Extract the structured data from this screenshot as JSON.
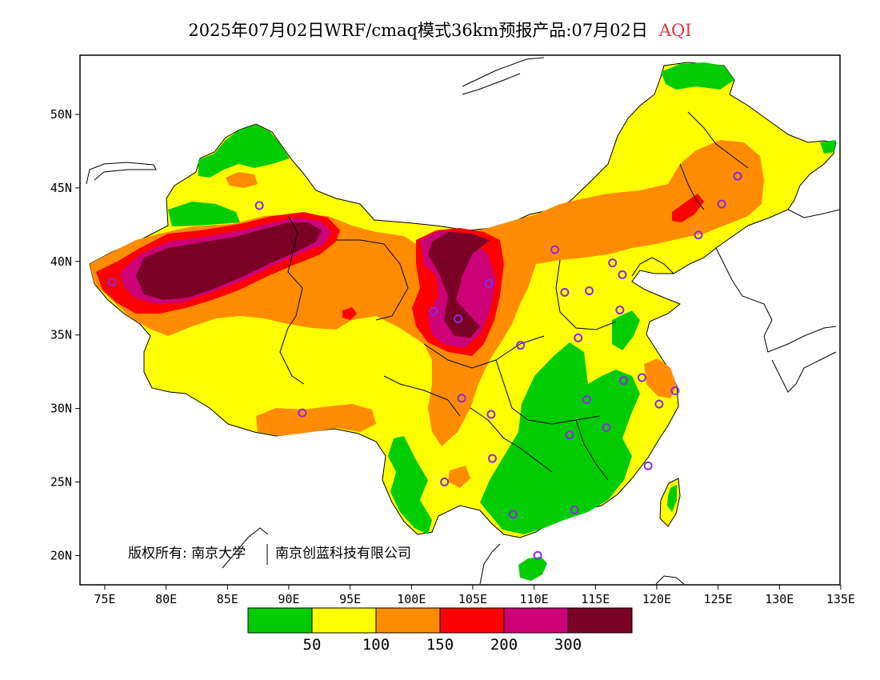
{
  "title": {
    "main": "2025年07月02日WRF/cmaq模式36km预报产品:07月02日",
    "variable": "AQI",
    "variable_color": "#e8323c"
  },
  "axes": {
    "x_ticks": [
      "75E",
      "80E",
      "85E",
      "90E",
      "95E",
      "100E",
      "105E",
      "110E",
      "115E",
      "120E",
      "125E",
      "130E",
      "135E"
    ],
    "y_ticks": [
      "50N",
      "45N",
      "40N",
      "35N",
      "30N",
      "25N",
      "20N"
    ]
  },
  "copyright": {
    "owner1": "版权所有: 南京大学",
    "owner2": "南京创蓝科技有限公司"
  },
  "colorbar": {
    "colors": [
      "#00cc00",
      "#ffff00",
      "#ff8c00",
      "#ff0000",
      "#cc0077",
      "#7a0026"
    ],
    "labels": [
      "50",
      "100",
      "150",
      "200",
      "300"
    ]
  },
  "stations": [
    {
      "lon": 87.6,
      "lat": 43.8
    },
    {
      "lon": 101.8,
      "lat": 36.6
    },
    {
      "lon": 103.8,
      "lat": 36.1
    },
    {
      "lon": 106.3,
      "lat": 38.5
    },
    {
      "lon": 111.7,
      "lat": 40.8
    },
    {
      "lon": 112.5,
      "lat": 37.9
    },
    {
      "lon": 114.5,
      "lat": 38.0
    },
    {
      "lon": 116.4,
      "lat": 39.9
    },
    {
      "lon": 117.2,
      "lat": 39.1
    },
    {
      "lon": 117.0,
      "lat": 36.7
    },
    {
      "lon": 113.6,
      "lat": 34.8
    },
    {
      "lon": 108.9,
      "lat": 34.3
    },
    {
      "lon": 117.3,
      "lat": 31.9
    },
    {
      "lon": 118.8,
      "lat": 32.1
    },
    {
      "lon": 120.2,
      "lat": 30.3
    },
    {
      "lon": 121.5,
      "lat": 31.2
    },
    {
      "lon": 114.3,
      "lat": 30.6
    },
    {
      "lon": 112.9,
      "lat": 28.2
    },
    {
      "lon": 115.9,
      "lat": 28.7
    },
    {
      "lon": 119.3,
      "lat": 26.1
    },
    {
      "lon": 113.3,
      "lat": 23.1
    },
    {
      "lon": 108.3,
      "lat": 22.8
    },
    {
      "lon": 110.3,
      "lat": 20.0
    },
    {
      "lon": 106.6,
      "lat": 26.6
    },
    {
      "lon": 102.7,
      "lat": 25.0
    },
    {
      "lon": 104.1,
      "lat": 30.7
    },
    {
      "lon": 106.5,
      "lat": 29.6
    },
    {
      "lon": 91.1,
      "lat": 29.7
    },
    {
      "lon": 123.4,
      "lat": 41.8
    },
    {
      "lon": 125.3,
      "lat": 43.9
    },
    {
      "lon": 126.6,
      "lat": 45.8
    },
    {
      "lon": 75.6,
      "lat": 38.6
    }
  ]
}
